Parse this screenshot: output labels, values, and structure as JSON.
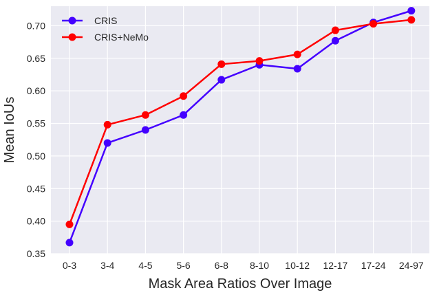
{
  "chart_data": {
    "type": "line",
    "title": "",
    "xlabel": "Mask Area Ratios Over Image",
    "ylabel": "Mean IoUs",
    "categories": [
      "0-3",
      "3-4",
      "4-5",
      "5-6",
      "6-8",
      "8-10",
      "10-12",
      "12-17",
      "17-24",
      "24-97"
    ],
    "ylim": [
      0.35,
      0.73
    ],
    "yticks": [
      "0.35",
      "0.40",
      "0.45",
      "0.50",
      "0.55",
      "0.60",
      "0.65",
      "0.70"
    ],
    "grid": true,
    "legend_position": "top-left",
    "background_color": "#eaeaf2",
    "series": [
      {
        "name": "CRIS",
        "color": "#4400ff",
        "values": [
          0.367,
          0.52,
          0.54,
          0.563,
          0.617,
          0.64,
          0.634,
          0.677,
          0.705,
          0.723
        ]
      },
      {
        "name": "CRIS+NeMo",
        "color": "#ff0000",
        "values": [
          0.395,
          0.548,
          0.563,
          0.592,
          0.641,
          0.646,
          0.656,
          0.693,
          0.703,
          0.709
        ]
      }
    ]
  }
}
